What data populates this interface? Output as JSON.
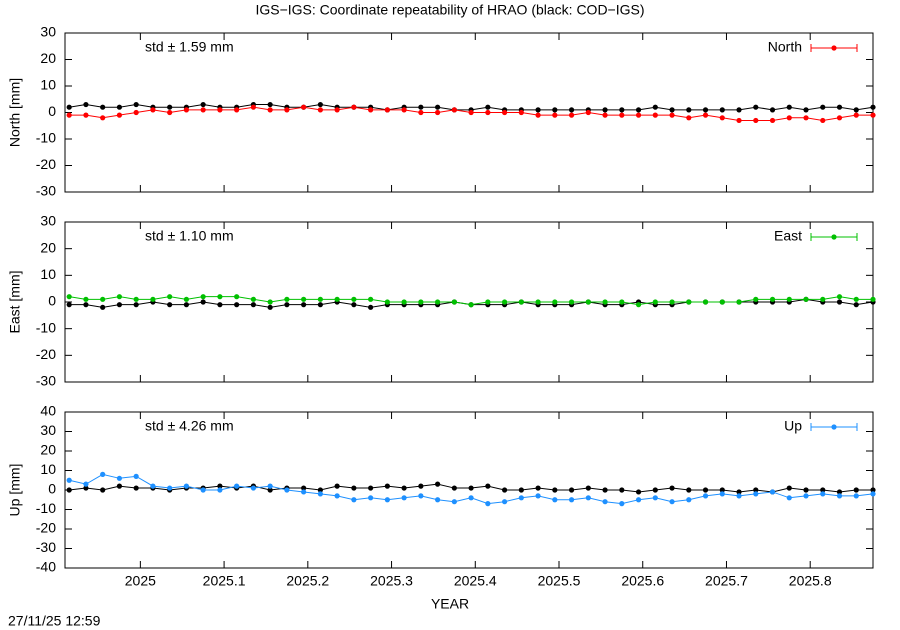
{
  "title": "IGS−IGS: Coordinate repeatability of HRAO (black: COD−IGS)",
  "footer": "27/11/25 12:59",
  "chart_data": {
    "type": "line",
    "xlabel": "YEAR",
    "xlim": [
      2024.91,
      2025.875
    ],
    "xticks": [
      2025,
      2025.1,
      2025.2,
      2025.3,
      2025.4,
      2025.5,
      2025.6,
      2025.7,
      2025.8
    ],
    "x": [
      2024.915,
      2024.935,
      2024.955,
      2024.975,
      2024.995,
      2025.015,
      2025.035,
      2025.055,
      2025.075,
      2025.095,
      2025.115,
      2025.135,
      2025.155,
      2025.175,
      2025.195,
      2025.215,
      2025.235,
      2025.255,
      2025.275,
      2025.295,
      2025.315,
      2025.335,
      2025.355,
      2025.375,
      2025.395,
      2025.415,
      2025.435,
      2025.455,
      2025.475,
      2025.495,
      2025.515,
      2025.535,
      2025.555,
      2025.575,
      2025.595,
      2025.615,
      2025.635,
      2025.655,
      2025.675,
      2025.695,
      2025.715,
      2025.735,
      2025.755,
      2025.775,
      2025.795,
      2025.815,
      2025.835,
      2025.855,
      2025.875
    ],
    "panels": [
      {
        "ylabel": "North [mm]",
        "ylim": [
          -30,
          30
        ],
        "yticks": [
          -30,
          -20,
          -10,
          0,
          10,
          20,
          30
        ],
        "annotation": "std ± 1.59 mm",
        "series": [
          {
            "color": "#000000",
            "values": [
              2,
              3,
              2,
              2,
              3,
              2,
              2,
              2,
              3,
              2,
              2,
              3,
              3,
              2,
              2,
              3,
              2,
              2,
              2,
              1,
              2,
              2,
              2,
              1,
              1,
              2,
              1,
              1,
              1,
              1,
              1,
              1,
              1,
              1,
              1,
              2,
              1,
              1,
              1,
              1,
              1,
              2,
              1,
              2,
              1,
              2,
              2,
              1,
              2
            ]
          },
          {
            "name": "North",
            "color": "#ff0000",
            "values": [
              -1,
              -1,
              -2,
              -1,
              0,
              1,
              0,
              1,
              1,
              1,
              1,
              2,
              1,
              1,
              2,
              1,
              1,
              2,
              1,
              1,
              1,
              0,
              0,
              1,
              0,
              0,
              0,
              0,
              -1,
              -1,
              -1,
              0,
              -1,
              -1,
              -1,
              -1,
              -1,
              -2,
              -1,
              -2,
              -3,
              -3,
              -3,
              -2,
              -2,
              -3,
              -2,
              -1,
              -1
            ]
          }
        ]
      },
      {
        "ylabel": "East [mm]",
        "ylim": [
          -30,
          30
        ],
        "yticks": [
          -30,
          -20,
          -10,
          0,
          10,
          20,
          30
        ],
        "annotation": "std ± 1.10 mm",
        "series": [
          {
            "color": "#000000",
            "values": [
              -1,
              -1,
              -2,
              -1,
              -1,
              0,
              -1,
              -1,
              0,
              -1,
              -1,
              -1,
              -2,
              -1,
              -1,
              -1,
              0,
              -1,
              -2,
              -1,
              -1,
              -1,
              -1,
              0,
              -1,
              -1,
              -1,
              0,
              -1,
              -1,
              -1,
              0,
              -1,
              -1,
              0,
              -1,
              -1,
              0,
              0,
              0,
              0,
              0,
              0,
              0,
              1,
              0,
              0,
              -1,
              0
            ]
          },
          {
            "name": "East",
            "color": "#00c000",
            "values": [
              2,
              1,
              1,
              2,
              1,
              1,
              2,
              1,
              2,
              2,
              2,
              1,
              0,
              1,
              1,
              1,
              1,
              1,
              1,
              0,
              0,
              0,
              0,
              0,
              -1,
              0,
              0,
              0,
              0,
              0,
              0,
              0,
              0,
              0,
              -1,
              0,
              0,
              0,
              0,
              0,
              0,
              1,
              1,
              1,
              1,
              1,
              2,
              1,
              1
            ]
          }
        ]
      },
      {
        "ylabel": "Up [mm]",
        "ylim": [
          -40,
          40
        ],
        "yticks": [
          -40,
          -30,
          -20,
          -10,
          0,
          10,
          20,
          30,
          40
        ],
        "annotation": "std ± 4.26 mm",
        "series": [
          {
            "color": "#000000",
            "values": [
              0,
              1,
              0,
              2,
              1,
              1,
              0,
              1,
              1,
              2,
              1,
              2,
              0,
              1,
              1,
              0,
              2,
              1,
              1,
              2,
              1,
              2,
              3,
              1,
              1,
              2,
              0,
              0,
              1,
              0,
              0,
              1,
              0,
              0,
              -1,
              0,
              1,
              0,
              0,
              0,
              -1,
              0,
              -1,
              1,
              0,
              0,
              -1,
              0,
              0
            ]
          },
          {
            "name": "Up",
            "color": "#1e90ff",
            "values": [
              5,
              3,
              8,
              6,
              7,
              2,
              1,
              2,
              0,
              0,
              2,
              1,
              2,
              0,
              -1,
              -2,
              -3,
              -5,
              -4,
              -5,
              -4,
              -3,
              -5,
              -6,
              -4,
              -7,
              -6,
              -4,
              -3,
              -5,
              -5,
              -4,
              -6,
              -7,
              -5,
              -4,
              -6,
              -5,
              -3,
              -2,
              -3,
              -2,
              -1,
              -4,
              -3,
              -2,
              -3,
              -3,
              -2
            ]
          }
        ]
      }
    ]
  }
}
